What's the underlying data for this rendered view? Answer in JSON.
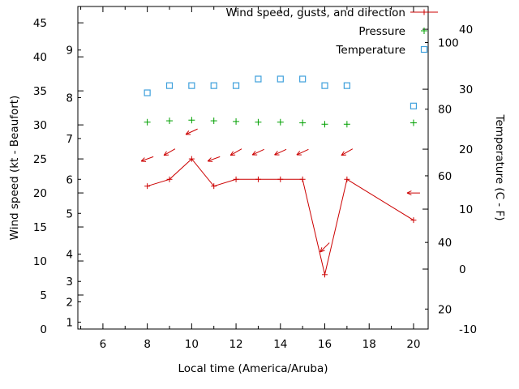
{
  "window": {
    "background": "#ffffff",
    "foreground": "#000000"
  },
  "chart_data": {
    "type": "line",
    "xlabel": "Local time (America/Aruba)",
    "ylabel_left": "Wind speed (kt - Beaufort)",
    "ylabel_right": "Temperature (C - F)",
    "grid": false,
    "legend_position": "top-right-inside",
    "xlim": [
      4.87,
      20.66
    ],
    "x_ticks": [
      6,
      8,
      10,
      12,
      14,
      16,
      18,
      20
    ],
    "x_minor_ticks": [
      5,
      7,
      9,
      11,
      13,
      15,
      17,
      19
    ],
    "left_axis": {
      "lim": [
        0,
        47.4
      ],
      "ticks": [
        0,
        5,
        10,
        15,
        20,
        25,
        30,
        35,
        40,
        45
      ],
      "beaufort_labels": [
        {
          "b": 1,
          "kt": 1
        },
        {
          "b": 2,
          "kt": 4
        },
        {
          "b": 3,
          "kt": 7
        },
        {
          "b": 4,
          "kt": 11
        },
        {
          "b": 5,
          "kt": 17
        },
        {
          "b": 6,
          "kt": 22
        },
        {
          "b": 7,
          "kt": 28
        },
        {
          "b": 8,
          "kt": 34
        },
        {
          "b": 9,
          "kt": 41
        }
      ]
    },
    "right_axis": {
      "lim": [
        -10,
        43.8
      ],
      "ticks": [
        -10,
        0,
        10,
        20,
        30,
        40
      ],
      "fahrenheit_ticks": [
        20,
        40,
        60,
        80,
        100
      ]
    },
    "legend": [
      {
        "label": "Wind speed, gusts, and direction",
        "marker": "line-plus",
        "color": "#cc0000"
      },
      {
        "label": "Pressure",
        "marker": "plus",
        "color": "#00a000"
      },
      {
        "label": "Temperature",
        "marker": "square",
        "color": "#3fa0dc"
      }
    ],
    "series": {
      "hours": [
        8,
        9,
        10,
        11,
        12,
        13,
        14,
        15,
        16,
        17,
        20
      ],
      "wind_speed_kt": [
        21,
        22,
        25,
        21,
        22,
        22,
        22,
        22,
        8,
        22,
        16
      ],
      "gust_kt": [
        25,
        26,
        29,
        25,
        26,
        26,
        26,
        26,
        12,
        26,
        20
      ],
      "gust_arrow_angles_deg": [
        200,
        210,
        205,
        200,
        210,
        205,
        205,
        205,
        225,
        210,
        180
      ],
      "pressure": [
        30.4,
        30.6,
        30.7,
        30.6,
        30.5,
        30.4,
        30.4,
        30.3,
        30.1,
        30.1,
        30.3
      ],
      "temperature_c": [
        29.4,
        30.6,
        30.6,
        30.6,
        30.6,
        31.7,
        31.7,
        31.7,
        30.6,
        30.6,
        27.2
      ]
    }
  }
}
